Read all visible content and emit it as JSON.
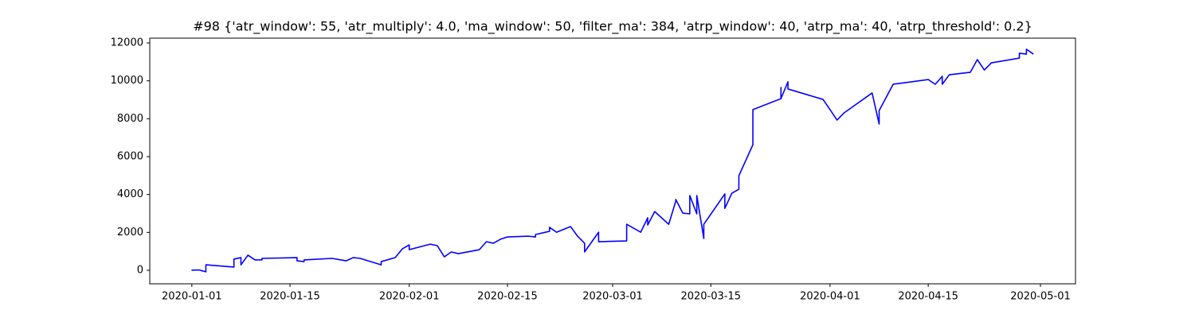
{
  "chart_data": {
    "type": "line",
    "title": "#98 {'atr_window': 55, 'atr_multiply': 4.0, 'ma_window': 50, 'filter_ma': 384, 'atrp_window': 40, 'atrp_ma': 40, 'atrp_threshold': 0.2}",
    "color": "#0000ff",
    "x": [
      "2020-01-01",
      "2020-01-01",
      "2020-01-02",
      "2020-01-03",
      "2020-01-03",
      "2020-01-07",
      "2020-01-07",
      "2020-01-08",
      "2020-01-08",
      "2020-01-09",
      "2020-01-10",
      "2020-01-11",
      "2020-01-11",
      "2020-01-16",
      "2020-01-16",
      "2020-01-17",
      "2020-01-17",
      "2020-01-21",
      "2020-01-23",
      "2020-01-24",
      "2020-01-25",
      "2020-01-28",
      "2020-01-28",
      "2020-01-30",
      "2020-01-31",
      "2020-02-01",
      "2020-02-01",
      "2020-02-04",
      "2020-02-05",
      "2020-02-06",
      "2020-02-07",
      "2020-02-08",
      "2020-02-11",
      "2020-02-12",
      "2020-02-13",
      "2020-02-14",
      "2020-02-15",
      "2020-02-18",
      "2020-02-19",
      "2020-02-19",
      "2020-02-21",
      "2020-02-21",
      "2020-02-22",
      "2020-02-24",
      "2020-02-25",
      "2020-02-26",
      "2020-02-26",
      "2020-02-28",
      "2020-02-28",
      "2020-03-03",
      "2020-03-03",
      "2020-03-05",
      "2020-03-06",
      "2020-03-06",
      "2020-03-07",
      "2020-03-09",
      "2020-03-10",
      "2020-03-10",
      "2020-03-11",
      "2020-03-12",
      "2020-03-12",
      "2020-03-13",
      "2020-03-13",
      "2020-03-14",
      "2020-03-14",
      "2020-03-17",
      "2020-03-17",
      "2020-03-18",
      "2020-03-19",
      "2020-03-19",
      "2020-03-21",
      "2020-03-21",
      "2020-03-25",
      "2020-03-25",
      "2020-03-25",
      "2020-03-26",
      "2020-03-26",
      "2020-03-31",
      "2020-04-01",
      "2020-04-02",
      "2020-04-03",
      "2020-04-07",
      "2020-04-08",
      "2020-04-08",
      "2020-04-10",
      "2020-04-15",
      "2020-04-16",
      "2020-04-17",
      "2020-04-17",
      "2020-04-18",
      "2020-04-21",
      "2020-04-22",
      "2020-04-23",
      "2020-04-24",
      "2020-04-28",
      "2020-04-28",
      "2020-04-29",
      "2020-04-29",
      "2020-04-30"
    ],
    "values": [
      20,
      10,
      20,
      -80,
      290,
      170,
      590,
      670,
      290,
      800,
      550,
      550,
      630,
      670,
      500,
      460,
      550,
      630,
      500,
      670,
      630,
      290,
      460,
      670,
      1130,
      1340,
      1090,
      1380,
      1300,
      710,
      970,
      880,
      1090,
      1510,
      1430,
      1640,
      1760,
      1800,
      1760,
      1890,
      2060,
      2270,
      2010,
      2310,
      1800,
      1430,
      970,
      2010,
      1510,
      1550,
      2430,
      2010,
      2770,
      2390,
      3100,
      2430,
      3650,
      3740,
      3020,
      2980,
      3950,
      2980,
      3950,
      1680,
      2430,
      4030,
      3270,
      4070,
      4280,
      4990,
      6630,
      8480,
      9060,
      9650,
      9060,
      9950,
      9570,
      9020,
      8480,
      7930,
      8310,
      9360,
      7720,
      8430,
      9820,
      10070,
      9820,
      10240,
      9820,
      10320,
      10450,
      11120,
      10570,
      10950,
      11200,
      11460,
      11410,
      11670,
      11410
    ],
    "xlim": [
      "2019-12-26",
      "2020-05-06"
    ],
    "xticks": [
      "2020-01-01",
      "2020-01-15",
      "2020-02-01",
      "2020-02-15",
      "2020-03-01",
      "2020-03-15",
      "2020-04-01",
      "2020-04-15",
      "2020-05-01"
    ],
    "ylim": [
      -713,
      12253
    ],
    "yticks": [
      0,
      2000,
      4000,
      6000,
      8000,
      10000,
      12000
    ]
  }
}
